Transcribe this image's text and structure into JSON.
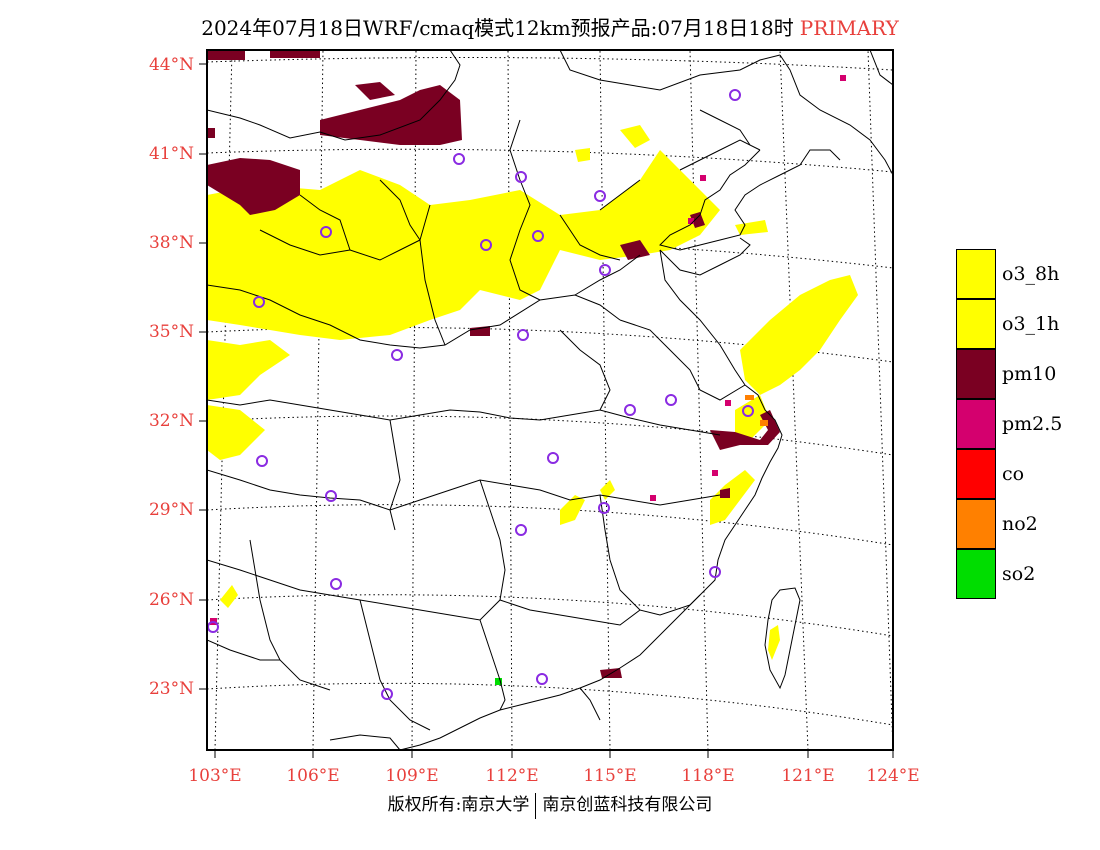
{
  "title": {
    "text": "2024年07月18日WRF/cmaq模式12km预报产品:07月18日18时",
    "tag": "PRIMARY",
    "tag_color": "#e8403c"
  },
  "lat_labels": [
    "44°N",
    "41°N",
    "38°N",
    "35°N",
    "32°N",
    "29°N",
    "26°N",
    "23°N"
  ],
  "lon_labels": [
    "103°E",
    "106°E",
    "109°E",
    "112°E",
    "115°E",
    "118°E",
    "121°E",
    "124°E"
  ],
  "legend": [
    {
      "label": "o3_8h",
      "color": "#ffff00"
    },
    {
      "label": "o3_1h",
      "color": "#ffff00"
    },
    {
      "label": "pm10",
      "color": "#7a0022"
    },
    {
      "label": "pm2.5",
      "color": "#d4006e"
    },
    {
      "label": "co",
      "color": "#ff0000"
    },
    {
      "label": "no2",
      "color": "#ff8000"
    },
    {
      "label": "so2",
      "color": "#00dd00"
    }
  ],
  "footer": {
    "left": "版权所有:南京大学",
    "right": "南京创蓝科技有限公司"
  },
  "colors": {
    "label_red": "#e8403c",
    "station_ring": "#8a2be2",
    "frame": "#000000"
  }
}
